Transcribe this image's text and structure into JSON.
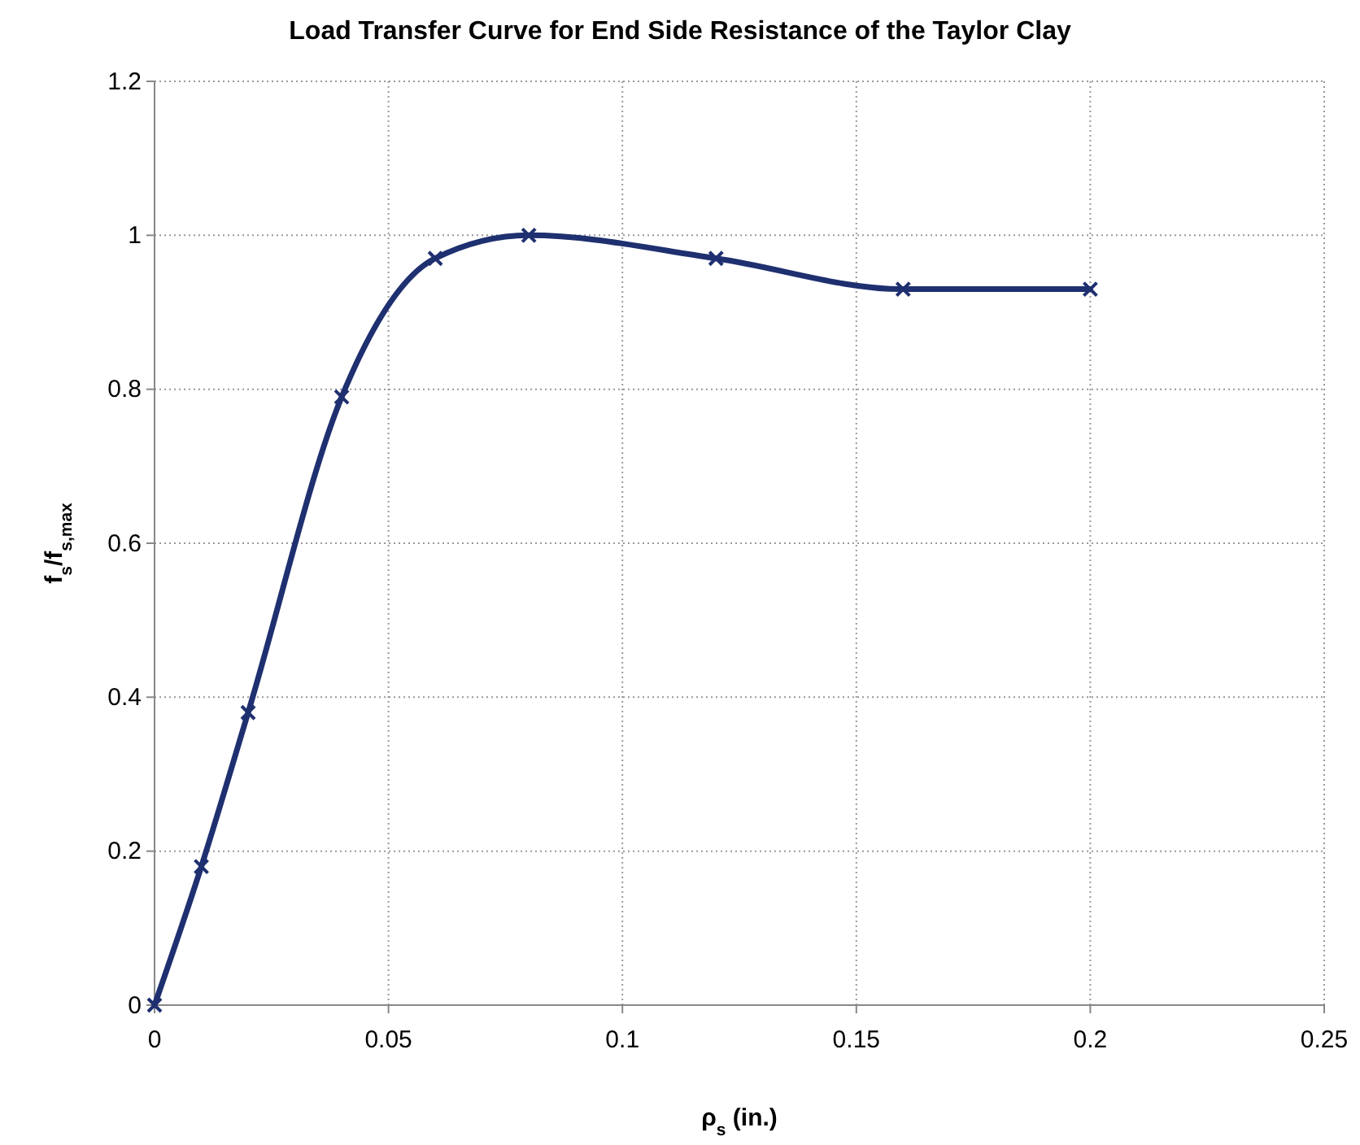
{
  "chart_data": {
    "type": "line",
    "title": "Load Transfer Curve for End Side Resistance of the Taylor Clay",
    "xlabel": "ρ$_{s}$ (in.)",
    "ylabel": "f$_{s}$/f$_{s,max}$",
    "x": [
      0,
      0.01,
      0.02,
      0.04,
      0.06,
      0.08,
      0.12,
      0.16,
      0.2
    ],
    "series": [
      {
        "color": "#1f3070",
        "values": [
          0,
          0.18,
          0.38,
          0.79,
          0.97,
          1.0,
          0.97,
          0.93,
          0.93
        ]
      }
    ],
    "xlim": [
      0,
      0.25
    ],
    "xticks": [
      0,
      0.05,
      0.1,
      0.15,
      0.2,
      0.25
    ],
    "ylim": [
      0,
      1.2
    ],
    "yticks": [
      0,
      0.2,
      0.4,
      0.6,
      0.8,
      1,
      1.2
    ],
    "grid": true,
    "marker": "cross",
    "line_style": "solid"
  }
}
